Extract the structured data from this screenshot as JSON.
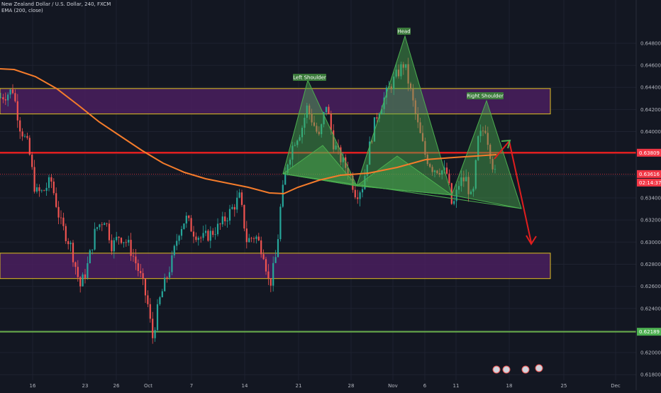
{
  "header": {
    "symbol_line": "New Zealand Dollar / U.S. Dollar, 240, FXCM",
    "indicator_line": "EMA (200, close)"
  },
  "chart_data": {
    "type": "candlestick",
    "y_axis": {
      "min": 0.6175,
      "max": 0.6505,
      "ticks": [
        "0.64800",
        "0.64600",
        "0.64400",
        "0.64200",
        "0.64000",
        "0.63800",
        "0.63600",
        "0.63400",
        "0.63200",
        "0.63000",
        "0.62800",
        "0.62600",
        "0.62400",
        "0.62200",
        "0.62000",
        "0.61800"
      ]
    },
    "x_axis": {
      "labels": [
        "16",
        "23",
        "26",
        "Oct",
        "7",
        "14",
        "21",
        "28",
        "Nov",
        "6",
        "11",
        "18",
        "25",
        "Dec"
      ]
    },
    "price_badges": [
      {
        "value": "0.63809",
        "color": "#f23645"
      },
      {
        "value": "0.63616",
        "color": "#f23645"
      },
      {
        "value": "02:14:37",
        "color": "#f23645"
      },
      {
        "value": "0.62189",
        "color": "#4caf50"
      }
    ],
    "zones": [
      {
        "name": "upper-supply-zone",
        "from": 0.6416,
        "to": 0.6439,
        "border": "#e0c020",
        "fill": "#4a1f5e"
      },
      {
        "name": "lower-demand-zone",
        "from": 0.6267,
        "to": 0.629,
        "border": "#e0c020",
        "fill": "#4a1f5e"
      }
    ],
    "horizontal_lines": [
      {
        "name": "neckline-resistance",
        "price": 0.63809,
        "color": "#e01e1e"
      },
      {
        "name": "support-line",
        "price": 0.62189,
        "color": "#6ab04c"
      }
    ],
    "pattern_labels": [
      "Left Shoulder",
      "Head",
      "Right Shoulder"
    ],
    "colors": {
      "up": "#26a69a",
      "down": "#ef5350",
      "ema": "#f57c2b",
      "pattern": "#4caf50",
      "arrow": "#e01e1e"
    }
  }
}
